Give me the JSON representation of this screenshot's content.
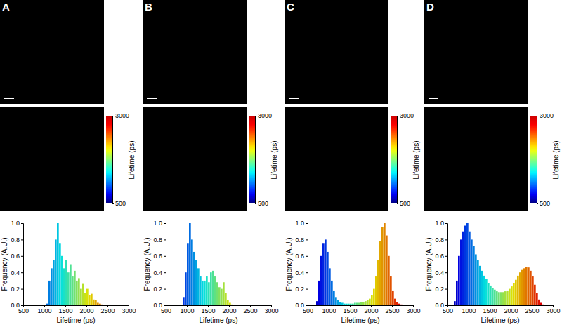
{
  "chart_data": [
    {
      "type": "histogram",
      "title": "A",
      "x_label": "Lifetime (ps)",
      "y_label": "Frequency (A.U.)",
      "bins": [
        500,
        550,
        600,
        650,
        700,
        750,
        800,
        850,
        900,
        950,
        1000,
        1050,
        1100,
        1150,
        1200,
        1250,
        1300,
        1350,
        1400,
        1450,
        1500,
        1550,
        1600,
        1650,
        1700,
        1750,
        1800,
        1850,
        1900,
        1950,
        2000,
        2050,
        2100,
        2150,
        2200,
        2250,
        2300,
        2350,
        2400,
        2450,
        2500,
        2550,
        2600,
        2650,
        2700,
        2750,
        2800,
        2850,
        2900,
        2950,
        3000
      ],
      "counts": [
        0,
        0,
        0,
        0,
        0,
        0,
        0,
        0,
        0,
        0,
        0,
        0.02,
        0.3,
        0.45,
        0.55,
        0.8,
        1.0,
        0.75,
        0.6,
        0.45,
        0.55,
        0.4,
        0.5,
        0.35,
        0.42,
        0.3,
        0.33,
        0.2,
        0.26,
        0.15,
        0.2,
        0.12,
        0.14,
        0.07,
        0.06,
        0.03,
        0.02,
        0.01,
        0,
        0,
        0,
        0,
        0,
        0,
        0,
        0,
        0,
        0,
        0,
        0
      ],
      "xlim": [
        500,
        3000
      ],
      "xticks": [
        500,
        1000,
        1500,
        2000,
        2500,
        3000
      ],
      "ylim": [
        0,
        1
      ],
      "yticks": [
        {
          "value": 0,
          "label": "0.0"
        },
        {
          "value": 0.2,
          "label": "0.2"
        },
        {
          "value": 0.4,
          "label": "0.4"
        },
        {
          "value": 0.6,
          "label": "0.6"
        },
        {
          "value": 0.8,
          "label": "0.8"
        },
        {
          "value": 1,
          "label": "1.0"
        }
      ],
      "colorbar": {
        "range": [
          500,
          3000
        ],
        "ticks": [
          500,
          3000
        ],
        "label": "Lifetime (ps)"
      }
    },
    {
      "type": "histogram",
      "title": "B",
      "x_label": "Lifetime (ps)",
      "y_label": "Frequency (A.U.)",
      "bins": [
        500,
        550,
        600,
        650,
        700,
        750,
        800,
        850,
        900,
        950,
        1000,
        1050,
        1100,
        1150,
        1200,
        1250,
        1300,
        1350,
        1400,
        1450,
        1500,
        1550,
        1600,
        1650,
        1700,
        1750,
        1800,
        1850,
        1900,
        1950,
        2000,
        2050,
        2100,
        2150,
        2200,
        2250,
        2300,
        2350,
        2400,
        2450,
        2500,
        2550,
        2600,
        2650,
        2700,
        2750,
        2800,
        2850,
        2900,
        2950,
        3000
      ],
      "counts": [
        0,
        0,
        0,
        0,
        0,
        0,
        0,
        0,
        0.1,
        0.4,
        0.75,
        1.0,
        0.8,
        0.65,
        0.55,
        0.45,
        0.35,
        0.3,
        0.3,
        0.35,
        0.28,
        0.4,
        0.42,
        0.35,
        0.28,
        0.22,
        0.2,
        0.28,
        0.15,
        0.06,
        0.03,
        0.01,
        0,
        0,
        0,
        0,
        0,
        0,
        0,
        0,
        0,
        0,
        0,
        0,
        0,
        0,
        0,
        0,
        0,
        0
      ],
      "xlim": [
        500,
        3000
      ],
      "xticks": [
        500,
        1000,
        1500,
        2000,
        2500,
        3000
      ],
      "ylim": [
        0,
        1
      ],
      "yticks": [
        {
          "value": 0,
          "label": "0.0"
        },
        {
          "value": 0.2,
          "label": "0.2"
        },
        {
          "value": 0.4,
          "label": "0.4"
        },
        {
          "value": 0.6,
          "label": "0.6"
        },
        {
          "value": 0.8,
          "label": "0.8"
        },
        {
          "value": 1,
          "label": "1.0"
        }
      ],
      "colorbar": {
        "range": [
          500,
          3000
        ],
        "ticks": [
          500,
          3000
        ],
        "label": "Lifetime (ps)"
      }
    },
    {
      "type": "histogram",
      "title": "C",
      "x_label": "Lifetime (ps)",
      "y_label": "Frequency (A.U.)",
      "bins": [
        500,
        550,
        600,
        650,
        700,
        750,
        800,
        850,
        900,
        950,
        1000,
        1050,
        1100,
        1150,
        1200,
        1250,
        1300,
        1350,
        1400,
        1450,
        1500,
        1550,
        1600,
        1650,
        1700,
        1750,
        1800,
        1850,
        1900,
        1950,
        2000,
        2050,
        2100,
        2150,
        2200,
        2250,
        2300,
        2350,
        2400,
        2450,
        2500,
        2550,
        2600,
        2650,
        2700,
        2750,
        2800,
        2850,
        2900,
        2950,
        3000
      ],
      "counts": [
        0,
        0,
        0,
        0,
        0.05,
        0.3,
        0.6,
        0.75,
        0.8,
        0.65,
        0.45,
        0.3,
        0.18,
        0.1,
        0.06,
        0.04,
        0.03,
        0.02,
        0.02,
        0.02,
        0.02,
        0.02,
        0.03,
        0.03,
        0.03,
        0.04,
        0.04,
        0.05,
        0.06,
        0.08,
        0.12,
        0.2,
        0.35,
        0.55,
        0.78,
        0.95,
        1.0,
        0.85,
        0.6,
        0.35,
        0.18,
        0.08,
        0.04,
        0.02,
        0.01,
        0,
        0,
        0,
        0,
        0
      ],
      "xlim": [
        500,
        3000
      ],
      "xticks": [
        500,
        1000,
        1500,
        2000,
        2500,
        3000
      ],
      "ylim": [
        0,
        1
      ],
      "yticks": [
        {
          "value": 0,
          "label": "0.0"
        },
        {
          "value": 0.2,
          "label": "0.2"
        },
        {
          "value": 0.4,
          "label": "0.4"
        },
        {
          "value": 0.6,
          "label": "0.6"
        },
        {
          "value": 0.8,
          "label": "0.8"
        },
        {
          "value": 1,
          "label": "1.0"
        }
      ],
      "colorbar": {
        "range": [
          500,
          3000
        ],
        "ticks": [
          500,
          3000
        ],
        "label": "Lifetime (ps)"
      }
    },
    {
      "type": "histogram",
      "title": "D",
      "x_label": "Lifetime (ps)",
      "y_label": "Frequency (A.U.)",
      "bins": [
        500,
        550,
        600,
        650,
        700,
        750,
        800,
        850,
        900,
        950,
        1000,
        1050,
        1100,
        1150,
        1200,
        1250,
        1300,
        1350,
        1400,
        1450,
        1500,
        1550,
        1600,
        1650,
        1700,
        1750,
        1800,
        1850,
        1900,
        1950,
        2000,
        2050,
        2100,
        2150,
        2200,
        2250,
        2300,
        2350,
        2400,
        2450,
        2500,
        2550,
        2600,
        2650,
        2700,
        2750,
        2800,
        2850,
        2900,
        2950,
        3000
      ],
      "counts": [
        0,
        0,
        0,
        0.05,
        0.3,
        0.6,
        0.8,
        0.9,
        0.97,
        1.0,
        0.9,
        0.8,
        0.72,
        0.62,
        0.55,
        0.48,
        0.42,
        0.36,
        0.32,
        0.27,
        0.24,
        0.21,
        0.19,
        0.17,
        0.16,
        0.16,
        0.16,
        0.17,
        0.18,
        0.2,
        0.23,
        0.27,
        0.31,
        0.36,
        0.4,
        0.43,
        0.45,
        0.47,
        0.46,
        0.42,
        0.35,
        0.25,
        0.15,
        0.07,
        0.03,
        0.01,
        0,
        0,
        0,
        0
      ],
      "xlim": [
        500,
        3000
      ],
      "xticks": [
        500,
        1000,
        1500,
        2000,
        2500,
        3000
      ],
      "ylim": [
        0,
        1
      ],
      "yticks": [
        {
          "value": 0,
          "label": "0.0"
        },
        {
          "value": 0.2,
          "label": "0.2"
        },
        {
          "value": 0.4,
          "label": "0.4"
        },
        {
          "value": 0.6,
          "label": "0.6"
        },
        {
          "value": 0.8,
          "label": "0.8"
        },
        {
          "value": 1,
          "label": "1.0"
        }
      ],
      "colorbar": {
        "range": [
          500,
          3000
        ],
        "ticks": [
          500,
          3000
        ],
        "label": "Lifetime (ps)"
      }
    }
  ]
}
